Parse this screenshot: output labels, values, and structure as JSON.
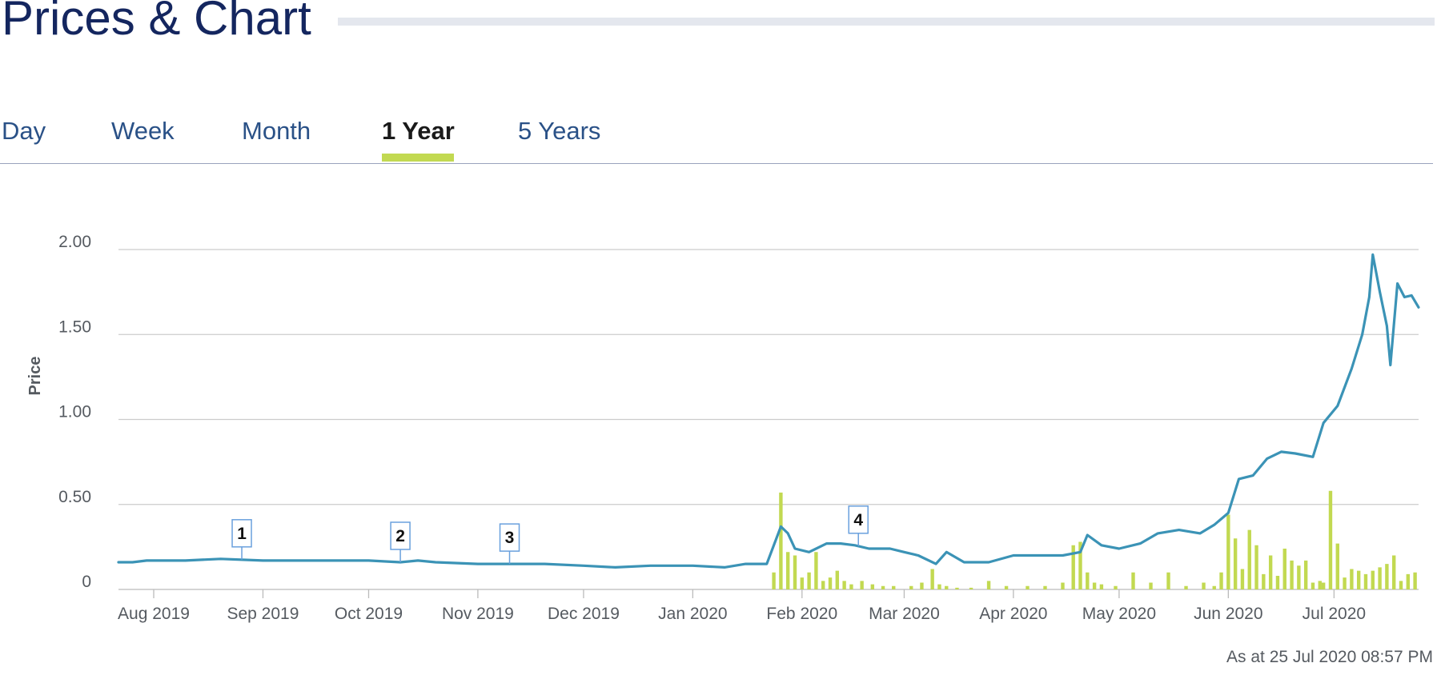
{
  "page": {
    "title": "Prices & Chart"
  },
  "tabs": [
    {
      "label": "Day",
      "active": false
    },
    {
      "label": "Week",
      "active": false
    },
    {
      "label": "Month",
      "active": false
    },
    {
      "label": "1 Year",
      "active": true
    },
    {
      "label": "5 Years",
      "active": false
    }
  ],
  "colors": {
    "price_line": "#3b93b6",
    "volume_bar": "#c2d951",
    "title": "#14265f",
    "tab_link": "#2a5187",
    "tab_indicator": "#c2d951"
  },
  "footnote": "As at 25 Jul 2020 08:57 PM",
  "chart_data": {
    "type": "line",
    "title": "",
    "xlabel": "",
    "ylabel": "Price",
    "ylim": [
      0,
      2.0
    ],
    "yticks": [
      0,
      0.5,
      1.0,
      1.5,
      2.0
    ],
    "ytick_labels": [
      "0",
      "0.50",
      "1.00",
      "1.50",
      "2.00"
    ],
    "xlim": [
      "2019-07-22",
      "2020-07-25"
    ],
    "xticks": [
      "2019-08-01",
      "2019-09-01",
      "2019-10-01",
      "2019-11-01",
      "2019-12-01",
      "2020-01-01",
      "2020-02-01",
      "2020-03-01",
      "2020-04-01",
      "2020-05-01",
      "2020-06-01",
      "2020-07-01"
    ],
    "xtick_labels": [
      "Aug 2019",
      "Sep 2019",
      "Oct 2019",
      "Nov 2019",
      "Dec 2019",
      "Jan 2020",
      "Feb 2020",
      "Mar 2020",
      "Apr 2020",
      "May 2020",
      "Jun 2020",
      "Jul 2020"
    ],
    "grid": true,
    "series": [
      {
        "name": "",
        "type": "line",
        "x": [
          "2019-07-22",
          "2019-07-26",
          "2019-07-30",
          "2019-08-01",
          "2019-08-10",
          "2019-08-20",
          "2019-09-01",
          "2019-09-10",
          "2019-09-20",
          "2019-10-01",
          "2019-10-10",
          "2019-10-15",
          "2019-10-20",
          "2019-11-01",
          "2019-11-10",
          "2019-11-20",
          "2019-12-01",
          "2019-12-10",
          "2019-12-20",
          "2020-01-01",
          "2020-01-10",
          "2020-01-16",
          "2020-01-22",
          "2020-01-26",
          "2020-01-28",
          "2020-01-30",
          "2020-02-03",
          "2020-02-08",
          "2020-02-12",
          "2020-02-16",
          "2020-02-20",
          "2020-02-26",
          "2020-03-01",
          "2020-03-05",
          "2020-03-10",
          "2020-03-13",
          "2020-03-18",
          "2020-03-25",
          "2020-04-01",
          "2020-04-08",
          "2020-04-15",
          "2020-04-20",
          "2020-04-22",
          "2020-04-26",
          "2020-05-01",
          "2020-05-07",
          "2020-05-12",
          "2020-05-18",
          "2020-05-24",
          "2020-05-28",
          "2020-06-01",
          "2020-06-04",
          "2020-06-08",
          "2020-06-12",
          "2020-06-16",
          "2020-06-20",
          "2020-06-25",
          "2020-06-28",
          "2020-07-02",
          "2020-07-06",
          "2020-07-09",
          "2020-07-11",
          "2020-07-12",
          "2020-07-14",
          "2020-07-16",
          "2020-07-17",
          "2020-07-19",
          "2020-07-21",
          "2020-07-23",
          "2020-07-25"
        ],
        "y": [
          0.16,
          0.16,
          0.17,
          0.17,
          0.17,
          0.18,
          0.17,
          0.17,
          0.17,
          0.17,
          0.16,
          0.17,
          0.16,
          0.15,
          0.15,
          0.15,
          0.14,
          0.13,
          0.14,
          0.14,
          0.13,
          0.15,
          0.15,
          0.37,
          0.33,
          0.24,
          0.22,
          0.27,
          0.27,
          0.26,
          0.24,
          0.24,
          0.22,
          0.2,
          0.15,
          0.22,
          0.16,
          0.16,
          0.2,
          0.2,
          0.2,
          0.22,
          0.32,
          0.26,
          0.24,
          0.27,
          0.33,
          0.35,
          0.33,
          0.38,
          0.45,
          0.65,
          0.67,
          0.77,
          0.81,
          0.8,
          0.78,
          0.98,
          1.08,
          1.3,
          1.5,
          1.72,
          1.97,
          1.75,
          1.55,
          1.32,
          1.8,
          1.72,
          1.73,
          1.66
        ]
      },
      {
        "name": "",
        "type": "bar",
        "x": [
          "2020-01-24",
          "2020-01-26",
          "2020-01-28",
          "2020-01-30",
          "2020-02-01",
          "2020-02-03",
          "2020-02-05",
          "2020-02-07",
          "2020-02-09",
          "2020-02-11",
          "2020-02-13",
          "2020-02-15",
          "2020-02-18",
          "2020-02-21",
          "2020-02-24",
          "2020-02-27",
          "2020-03-03",
          "2020-03-06",
          "2020-03-09",
          "2020-03-11",
          "2020-03-13",
          "2020-03-16",
          "2020-03-20",
          "2020-03-25",
          "2020-03-30",
          "2020-04-05",
          "2020-04-10",
          "2020-04-15",
          "2020-04-18",
          "2020-04-20",
          "2020-04-22",
          "2020-04-24",
          "2020-04-26",
          "2020-04-30",
          "2020-05-05",
          "2020-05-10",
          "2020-05-15",
          "2020-05-20",
          "2020-05-25",
          "2020-05-28",
          "2020-05-30",
          "2020-06-01",
          "2020-06-03",
          "2020-06-05",
          "2020-06-07",
          "2020-06-09",
          "2020-06-11",
          "2020-06-13",
          "2020-06-15",
          "2020-06-17",
          "2020-06-19",
          "2020-06-21",
          "2020-06-23",
          "2020-06-25",
          "2020-06-27",
          "2020-06-28",
          "2020-06-30",
          "2020-07-02",
          "2020-07-04",
          "2020-07-06",
          "2020-07-08",
          "2020-07-10",
          "2020-07-12",
          "2020-07-14",
          "2020-07-16",
          "2020-07-18",
          "2020-07-20",
          "2020-07-22",
          "2020-07-24"
        ],
        "y": [
          0.1,
          0.57,
          0.22,
          0.2,
          0.07,
          0.1,
          0.22,
          0.05,
          0.07,
          0.11,
          0.05,
          0.03,
          0.05,
          0.03,
          0.02,
          0.02,
          0.02,
          0.04,
          0.12,
          0.03,
          0.02,
          0.01,
          0.01,
          0.05,
          0.02,
          0.02,
          0.02,
          0.04,
          0.26,
          0.28,
          0.1,
          0.04,
          0.03,
          0.02,
          0.1,
          0.04,
          0.1,
          0.02,
          0.04,
          0.02,
          0.1,
          0.44,
          0.3,
          0.12,
          0.35,
          0.26,
          0.09,
          0.2,
          0.08,
          0.24,
          0.17,
          0.14,
          0.17,
          0.04,
          0.05,
          0.04,
          0.58,
          0.27,
          0.07,
          0.12,
          0.11,
          0.09,
          0.11,
          0.13,
          0.15,
          0.2,
          0.05,
          0.09,
          0.1
        ]
      }
    ],
    "annotations": [
      {
        "label": "1",
        "date": "2019-08-26"
      },
      {
        "label": "2",
        "date": "2019-10-10"
      },
      {
        "label": "3",
        "date": "2019-11-10"
      },
      {
        "label": "4",
        "date": "2020-02-17"
      }
    ]
  }
}
